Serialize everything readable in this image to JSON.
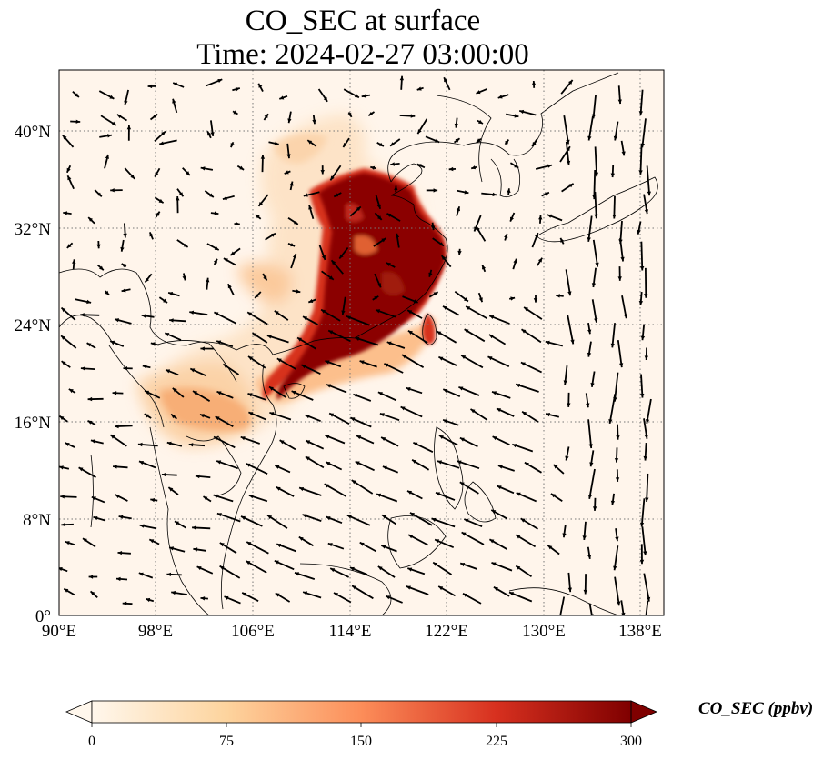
{
  "title": "CO_SEC at surface",
  "subtitle": "Time: 2024-02-27 03:00:00",
  "map": {
    "lon_range": [
      90,
      140
    ],
    "lat_range": [
      0,
      45
    ],
    "lon_ticks": [
      "90°E",
      "98°E",
      "106°E",
      "114°E",
      "122°E",
      "130°E",
      "138°E"
    ],
    "lat_ticks": [
      "0°",
      "8°N",
      "16°N",
      "24°N",
      "32°N",
      "40°N"
    ],
    "gridlines": "dotted",
    "plume_color_max": "#800000",
    "plume_color_mid": "#e34a33",
    "background_color": "#fff5eb",
    "wind_vectors": true
  },
  "colorbar": {
    "label": "CO_SEC (ppbv)",
    "ticks": [
      "0",
      "75",
      "150",
      "225",
      "300"
    ],
    "range": [
      0,
      300
    ],
    "colormap": "OrRd",
    "extend": "both"
  }
}
